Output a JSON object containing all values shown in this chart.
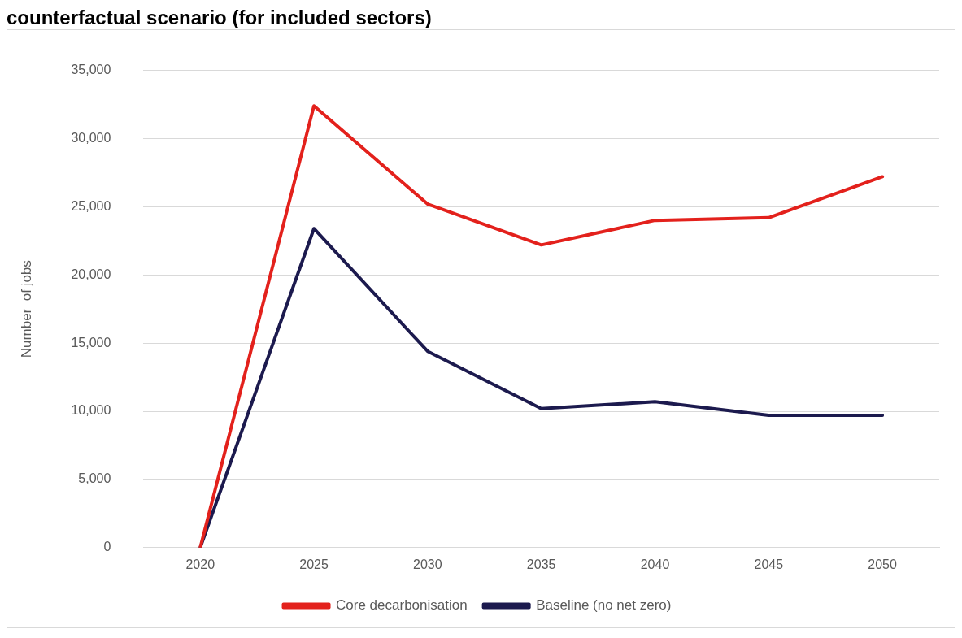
{
  "chart_data": {
    "type": "line",
    "title": "counterfactual scenario (for included sectors)",
    "ylabel": "Number  of jobs",
    "categories": [
      "2020",
      "2025",
      "2030",
      "2035",
      "2040",
      "2045",
      "2050"
    ],
    "series": [
      {
        "name": "Core decarbonisation",
        "color": "#e3211c",
        "values": [
          0,
          32400,
          25200,
          22200,
          24000,
          24200,
          27200
        ]
      },
      {
        "name": "Baseline (no net zero)",
        "color": "#1c1a4e",
        "values": [
          0,
          23400,
          14400,
          10200,
          10700,
          9700,
          9700
        ]
      }
    ],
    "ylim": [
      0,
      35000
    ],
    "yticks": [
      0,
      {
        "value": 5000,
        "label": "5,000"
      },
      {
        "value": 10000,
        "label": "10,000"
      },
      {
        "value": 15000,
        "label": "15,000"
      },
      {
        "value": 20000,
        "label": "20,000"
      },
      {
        "value": 25000,
        "label": "25,000"
      },
      {
        "value": 30000,
        "label": "30,000"
      },
      {
        "value": 35000,
        "label": "35,000"
      }
    ],
    "grid": "y",
    "legend": "bottom",
    "marker": "none",
    "line_style": "solid"
  }
}
